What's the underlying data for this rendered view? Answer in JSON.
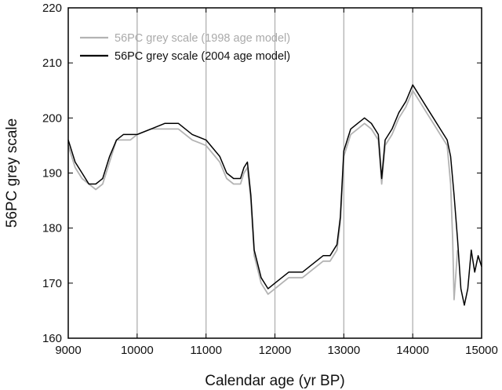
{
  "chart_data": {
    "type": "line",
    "title": "",
    "xlabel": "Calendar age (yr BP)",
    "ylabel": "56PC grey scale",
    "xlim": [
      9000,
      15000
    ],
    "ylim": [
      160,
      220
    ],
    "x_ticks": [
      9000,
      10000,
      11000,
      12000,
      13000,
      14000,
      15000
    ],
    "y_ticks": [
      160,
      170,
      180,
      190,
      200,
      210,
      220
    ],
    "x_tick_labels": [
      "9000",
      "10000",
      "11000",
      "12000",
      "13000",
      "14000",
      "15000"
    ],
    "y_tick_labels": [
      "160",
      "170",
      "180",
      "190",
      "200",
      "210",
      "220"
    ],
    "vertical_gridlines_x": [
      10000,
      11000,
      12000,
      13000,
      14000
    ],
    "grid": "vertical lines only",
    "legend_position": "top-left",
    "series": [
      {
        "name": "56PC grey  scale (1998 age model)",
        "color": "#b3b3b3",
        "x": [
          9000,
          9100,
          9200,
          9300,
          9400,
          9500,
          9600,
          9700,
          9800,
          9900,
          10000,
          10200,
          10400,
          10600,
          10800,
          11000,
          11200,
          11300,
          11400,
          11500,
          11550,
          11600,
          11650,
          11700,
          11800,
          11900,
          12000,
          12100,
          12200,
          12300,
          12400,
          12500,
          12600,
          12700,
          12800,
          12900,
          12950,
          13000,
          13050,
          13100,
          13200,
          13300,
          13400,
          13500,
          13550,
          13600,
          13650,
          13700,
          13800,
          13900,
          14000,
          14100,
          14200,
          14300,
          14400,
          14500,
          14550,
          14580,
          14600,
          14650
        ],
        "y": [
          195,
          191,
          189,
          188,
          187,
          188,
          192,
          196,
          196,
          196,
          197,
          198,
          198,
          198,
          196,
          195,
          192,
          189,
          188,
          188,
          190,
          191,
          185,
          175,
          170,
          168,
          169,
          170,
          171,
          171,
          171,
          172,
          173,
          174,
          174,
          176,
          181,
          193,
          195,
          197,
          198,
          199,
          198,
          196,
          188,
          195,
          196,
          197,
          200,
          202,
          205,
          203,
          201,
          199,
          197,
          195,
          188,
          178,
          167,
          176
        ]
      },
      {
        "name": "56PC grey scale (2004 age model)",
        "color": "#000000",
        "x": [
          9000,
          9100,
          9200,
          9300,
          9400,
          9500,
          9600,
          9700,
          9800,
          9900,
          10000,
          10200,
          10400,
          10600,
          10800,
          11000,
          11200,
          11300,
          11400,
          11500,
          11550,
          11600,
          11650,
          11700,
          11800,
          11900,
          12000,
          12100,
          12200,
          12300,
          12400,
          12500,
          12600,
          12700,
          12800,
          12900,
          12950,
          13000,
          13050,
          13100,
          13200,
          13300,
          13400,
          13500,
          13550,
          13600,
          13650,
          13700,
          13800,
          13900,
          14000,
          14100,
          14200,
          14300,
          14400,
          14500,
          14550,
          14600,
          14650,
          14700,
          14750,
          14800,
          14850,
          14900,
          14950,
          15000
        ],
        "y": [
          196,
          192,
          190,
          188,
          188,
          189,
          193,
          196,
          197,
          197,
          197,
          198,
          199,
          199,
          197,
          196,
          193,
          190,
          189,
          189,
          191,
          192,
          186,
          176,
          171,
          169,
          170,
          171,
          172,
          172,
          172,
          173,
          174,
          175,
          175,
          177,
          182,
          194,
          196,
          198,
          199,
          200,
          199,
          197,
          189,
          196,
          197,
          198,
          201,
          203,
          206,
          204,
          202,
          200,
          198,
          196,
          193,
          186,
          178,
          169,
          166,
          169,
          176,
          172,
          175,
          173
        ]
      }
    ]
  }
}
